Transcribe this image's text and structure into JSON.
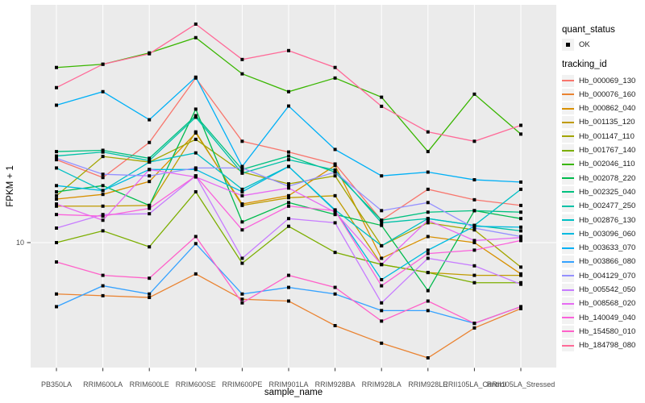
{
  "chart_data": {
    "type": "line",
    "title": "",
    "x_axis": {
      "label": "sample_name",
      "categories": [
        "PB350LA",
        "RRIM600LA",
        "RRIM600LE",
        "RRIM600SE",
        "RRIM600PE",
        "RRIM901LA",
        "RRIM928BA",
        "RRIM928LA",
        "RRIM928LE",
        "RRII105LA_Control",
        "RRII105LA_Stressed"
      ]
    },
    "y_axis": {
      "label": "FPKM + 1",
      "scale": "log10",
      "ticks": [
        10
      ],
      "tick_labels": [
        "10"
      ],
      "range": [
        3,
        95
      ]
    },
    "grid": {
      "vertical_major": true,
      "horizontal_major_at": [
        10
      ]
    },
    "marker": {
      "shape": "filled-square",
      "color": "#000000"
    },
    "legend_position": "right",
    "legend": {
      "quant_status_title": "quant_status",
      "quant_status_items": [
        {
          "label": "OK",
          "marker": "filled-square",
          "color": "#000000"
        }
      ],
      "tracking_id_title": "tracking_id"
    },
    "series": [
      {
        "name": "Hb_000069_130",
        "color": "#F8766D",
        "values": [
          22.2,
          18.7,
          26.2,
          48.7,
          26.5,
          23.9,
          21.3,
          12.4,
          16.7,
          15.1,
          14.3
        ]
      },
      {
        "name": "Hb_000076_160",
        "color": "#EA8331",
        "values": [
          6.1,
          6.0,
          5.9,
          7.4,
          5.8,
          5.7,
          4.5,
          3.8,
          3.3,
          4.4,
          5.3
        ]
      },
      {
        "name": "Hb_000862_040",
        "color": "#D89000",
        "values": [
          15.2,
          15.9,
          18.0,
          28.7,
          14.5,
          15.7,
          21.0,
          8.6,
          10.6,
          10.0,
          7.4
        ]
      },
      {
        "name": "Hb_001135_120",
        "color": "#C09B00",
        "values": [
          14.2,
          14.2,
          14.3,
          29.0,
          14.3,
          15.4,
          15.7,
          8.1,
          7.5,
          7.3,
          7.3
        ]
      },
      {
        "name": "Hb_001147_110",
        "color": "#A3A500",
        "values": [
          15.7,
          22.9,
          21.7,
          27.0,
          19.7,
          17.6,
          19.0,
          9.7,
          12.1,
          11.3,
          7.9
        ]
      },
      {
        "name": "Hb_001767_140",
        "color": "#7CAE00",
        "values": [
          10.0,
          11.2,
          9.6,
          16.3,
          8.2,
          11.7,
          9.1,
          8.1,
          7.5,
          6.8,
          6.8
        ]
      },
      {
        "name": "Hb_002046_110",
        "color": "#39B600",
        "values": [
          53.9,
          55.6,
          62.0,
          71.8,
          50.7,
          42.7,
          48.7,
          40.5,
          24.0,
          41.7,
          28.4
        ]
      },
      {
        "name": "Hb_002078_220",
        "color": "#00BB4E",
        "values": [
          16.3,
          17.3,
          14.3,
          36.1,
          12.2,
          14.7,
          13.1,
          11.8,
          6.3,
          13.6,
          12.6
        ]
      },
      {
        "name": "Hb_002325_040",
        "color": "#00C180",
        "values": [
          24.0,
          24.3,
          22.5,
          33.9,
          20.2,
          23.0,
          19.7,
          12.4,
          13.4,
          13.6,
          13.4
        ]
      },
      {
        "name": "Hb_002477_250",
        "color": "#00C1A7",
        "values": [
          23.0,
          23.9,
          22.0,
          33.4,
          19.5,
          22.2,
          20.1,
          12.1,
          12.6,
          11.8,
          11.2
        ]
      },
      {
        "name": "Hb_002876_130",
        "color": "#00BFC4",
        "values": [
          20.5,
          16.5,
          21.7,
          23.7,
          16.7,
          20.8,
          13.7,
          9.7,
          12.6,
          11.8,
          16.7
        ]
      },
      {
        "name": "Hb_003096_060",
        "color": "#00BAE0",
        "values": [
          17.3,
          16.5,
          20.2,
          20.2,
          16.3,
          20.8,
          13.6,
          7.0,
          9.3,
          11.7,
          11.6
        ]
      },
      {
        "name": "Hb_003633_070",
        "color": "#00B0F6",
        "values": [
          37.5,
          42.7,
          32.6,
          49.1,
          20.8,
          37.2,
          24.5,
          19.0,
          19.7,
          18.3,
          17.9
        ]
      },
      {
        "name": "Hb_003866_080",
        "color": "#35A2FF",
        "values": [
          5.4,
          6.6,
          6.1,
          9.9,
          6.1,
          6.5,
          6.1,
          5.2,
          5.2,
          4.6,
          5.4
        ]
      },
      {
        "name": "Hb_004129_070",
        "color": "#9590FF",
        "values": [
          22.5,
          19.3,
          19.0,
          20.5,
          20.5,
          17.2,
          19.7,
          13.6,
          14.7,
          11.5,
          10.6
        ]
      },
      {
        "name": "Hb_005542_050",
        "color": "#C77CFF",
        "values": [
          11.5,
          13.1,
          13.2,
          19.0,
          8.6,
          12.6,
          12.1,
          5.6,
          8.6,
          8.0,
          6.7
        ]
      },
      {
        "name": "Hb_008568_020",
        "color": "#E76BF3",
        "values": [
          14.5,
          12.4,
          20.2,
          18.8,
          15.7,
          16.9,
          13.4,
          8.1,
          12.4,
          10.2,
          10.5
        ]
      },
      {
        "name": "Hb_140049_040",
        "color": "#FA62DB",
        "values": [
          13.1,
          12.9,
          13.9,
          19.0,
          11.3,
          14.2,
          13.6,
          6.6,
          9.0,
          9.3,
          10.2
        ]
      },
      {
        "name": "Hb_154580_010",
        "color": "#FF61C9",
        "values": [
          8.3,
          7.3,
          7.1,
          10.6,
          5.6,
          7.3,
          6.5,
          4.7,
          5.7,
          4.6,
          5.4
        ]
      },
      {
        "name": "Hb_184798_080",
        "color": "#FF6A98",
        "values": [
          44.4,
          55.6,
          61.5,
          81.8,
          58.2,
          63.4,
          53.9,
          37.1,
          29.0,
          26.5,
          30.9
        ]
      }
    ],
    "colors": {
      "panel_bg": "#EBEBEB",
      "grid": "#FFFFFF",
      "axis_text": "#4D4D4D",
      "tick_mark": "#333333",
      "legend_key_bg": "#F2F2F2",
      "background": "#FFFFFF"
    }
  }
}
